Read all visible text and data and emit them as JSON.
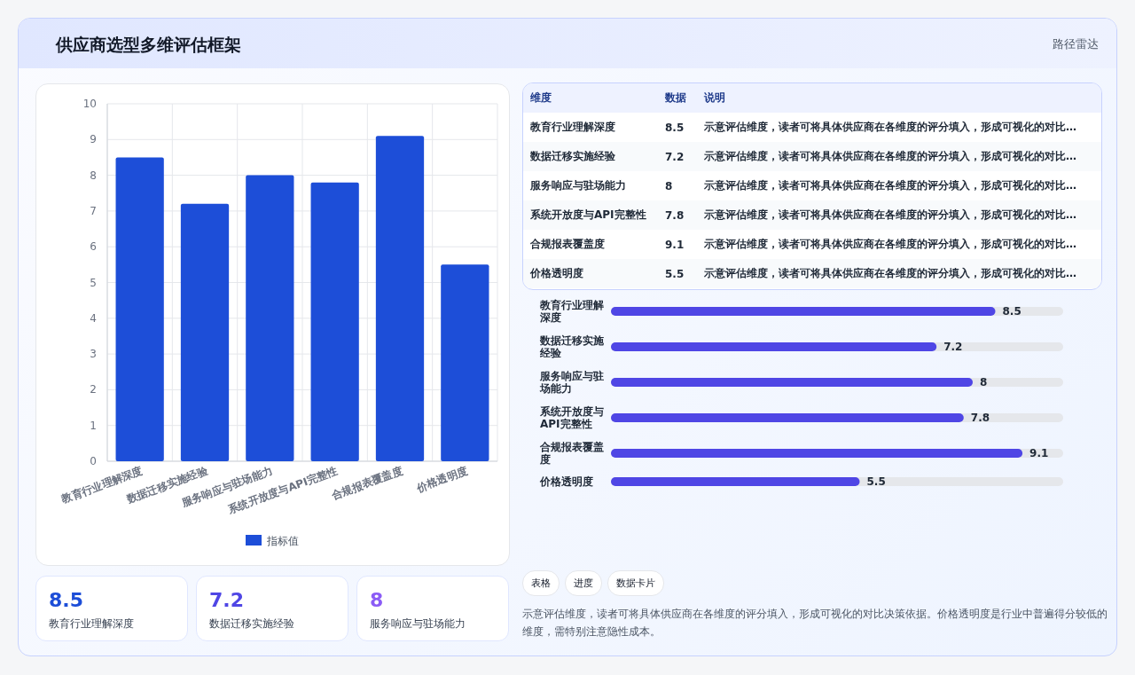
{
  "chart_data": [
    {
      "type": "other",
      "title": "供应商选型多维评估框架",
      "subtitle": "路径雷达"
    },
    {
      "type": "bar",
      "categories": [
        "教育行业理解深度",
        "数据迁移实施经验",
        "服务响应与驻场能力",
        "系统开放度与API完整性",
        "合规报表覆盖度",
        "价格透明度"
      ],
      "series": [
        {
          "name": "指标值",
          "color": "#1d4ed8",
          "values": [
            8.5,
            7.2,
            8,
            7.8,
            9.1,
            5.5
          ]
        }
      ],
      "ylim": [
        0,
        10
      ],
      "yticks": [
        0,
        1,
        2,
        3,
        4,
        5,
        6,
        7,
        8,
        9,
        10
      ],
      "grid": true,
      "legend": "bottom"
    },
    {
      "type": "other",
      "categories": [
        "教育行业理解深度",
        "数据迁移实施经验",
        "服务响应与驻场能力",
        "系统开放度与API完整性",
        "合规报表覆盖度",
        "价格透明度"
      ],
      "value_labels": [
        "8.5",
        "7.2",
        "8",
        "7.8",
        "9.1",
        "5.5"
      ],
      "annotations": [
        "维度",
        "数据",
        "说明",
        "示意评估维度，读者可将具体供应商在各维度的评分填入，形成可视化的对比…",
        "示意评估维度，读者可将具体供应商在各维度的评分填入，形成可视化的对比…",
        "示意评估维度，读者可将具体供应商在各维度的评分填入，形成可视化的对比…",
        "示意评估维度，读者可将具体供应商在各维度的评分填入，形成可视化的对比…",
        "示意评估维度，读者可将具体供应商在各维度的评分填入，形成可视化的对比…",
        "示意评估维度，读者可将具体供应商在各维度的评分填入，形成可视化的对比…"
      ]
    },
    {
      "type": "bar",
      "orientation": "horizontal",
      "data_labels": true,
      "xlim": [
        0,
        10
      ],
      "categories": [
        "教育行业理解深度",
        "数据迁移实施经验",
        "服务响应与驻场能力",
        "系统开放度与API完整性",
        "合规报表覆盖度",
        "价格透明度"
      ],
      "series": [
        {
          "color": "#4f46e5",
          "values": [
            8.5,
            7.2,
            8,
            7.8,
            9.1,
            5.5
          ]
        }
      ]
    },
    {
      "type": "other",
      "categories": [
        "教育行业理解深度",
        "数据迁移实施经验",
        "服务响应与驻场能力"
      ],
      "value_labels": [
        "8.5",
        "7.2",
        "8"
      ]
    },
    {
      "type": "other",
      "annotations": [
        "表格",
        "进度",
        "数据卡片",
        "示意评估维度，读者可将具体供应商在各维度的评分填入，形成可视化的对比决策依据。价格透明度是行业中普遍得分较低的维度，需特别注意隐性成本。"
      ]
    }
  ]
}
